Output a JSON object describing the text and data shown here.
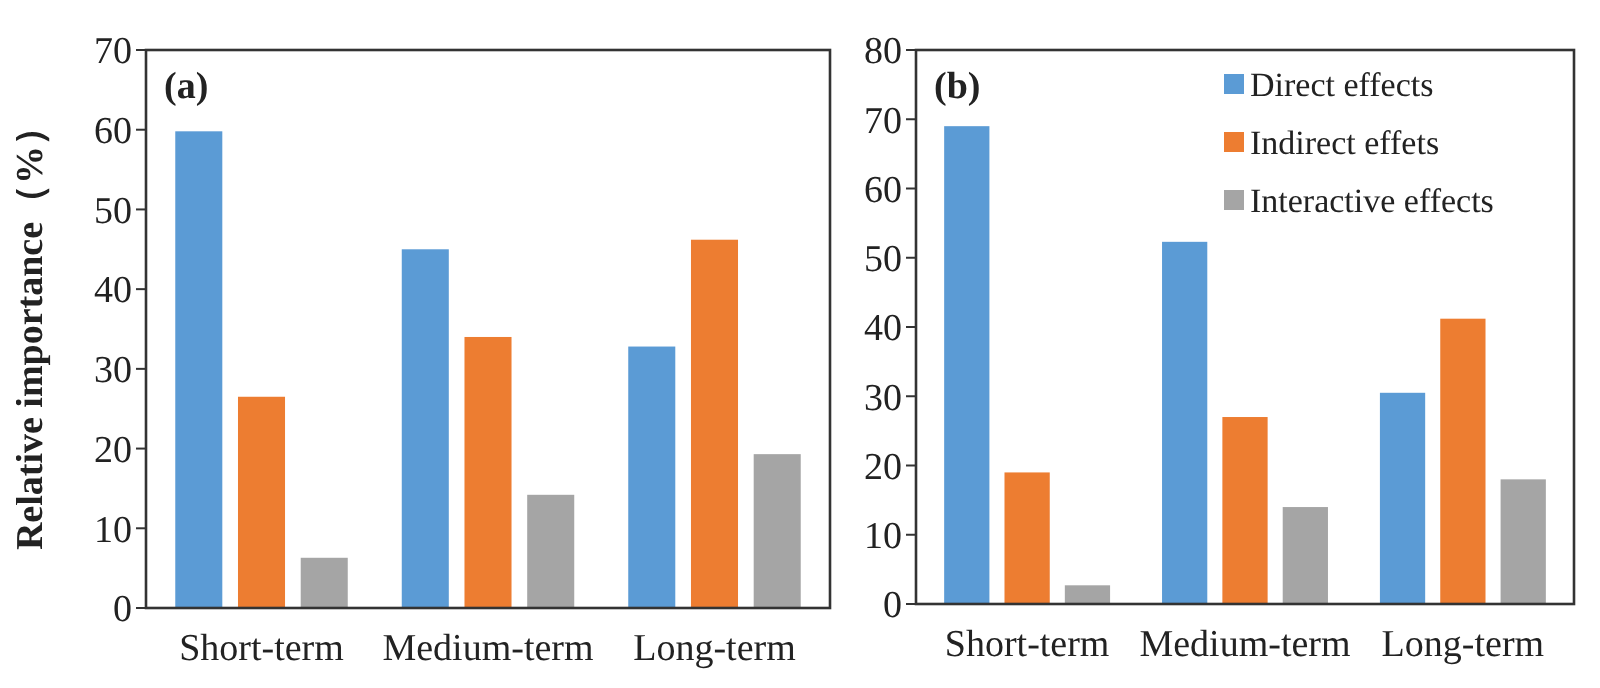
{
  "chart_data": [
    {
      "type": "bar",
      "ylabel": "Relative importance（%）",
      "annotations": [
        "(a)"
      ],
      "categories": [
        "Short-term",
        "Medium-term",
        "Long-term"
      ],
      "ylim": [
        0,
        70
      ],
      "yticks": [
        0,
        10,
        20,
        30,
        40,
        50,
        60,
        70
      ],
      "grid": false,
      "legend": false,
      "series": [
        {
          "color": "#5b9bd5",
          "values": [
            59.8,
            45,
            32.8
          ]
        },
        {
          "color": "#ed7d31",
          "values": [
            26.5,
            34,
            46.2
          ]
        },
        {
          "color": "#a5a5a5",
          "values": [
            6.3,
            14.2,
            19.3
          ]
        }
      ]
    },
    {
      "type": "bar",
      "annotations": [
        "(b)"
      ],
      "categories": [
        "Short-term",
        "Medium-term",
        "Long-term"
      ],
      "ylim": [
        0,
        80
      ],
      "yticks": [
        0,
        10,
        20,
        30,
        40,
        50,
        60,
        70,
        80
      ],
      "grid": false,
      "legend": "top right",
      "series": [
        {
          "name": "Direct effects",
          "color": "#5b9bd5",
          "values": [
            69,
            52.3,
            30.5
          ]
        },
        {
          "name": "Indirect effets",
          "color": "#ed7d31",
          "values": [
            19,
            27,
            41.2
          ]
        },
        {
          "name": "Interactive effects",
          "color": "#a5a5a5",
          "values": [
            2.7,
            14,
            18
          ]
        }
      ]
    }
  ]
}
